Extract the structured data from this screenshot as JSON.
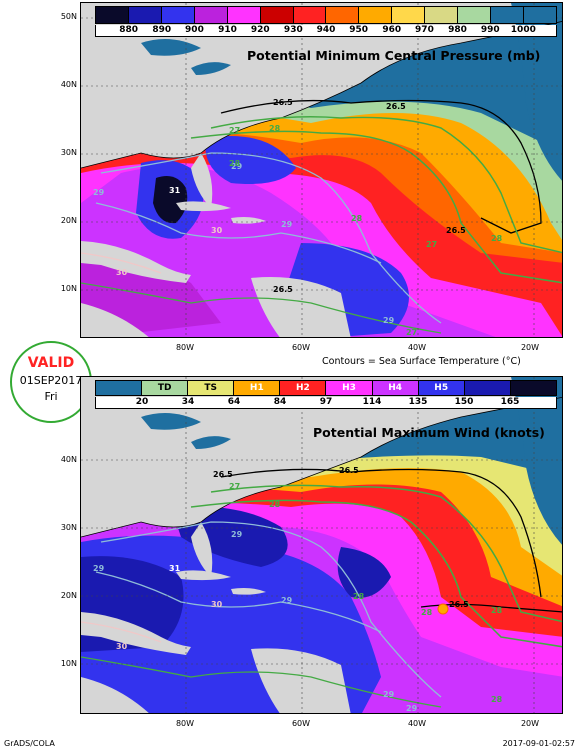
{
  "top_panel": {
    "title": "Potential Minimum Central Pressure (mb)",
    "legend_levels": [
      "880",
      "890",
      "900",
      "910",
      "920",
      "930",
      "940",
      "950",
      "960",
      "970",
      "980",
      "990",
      "1000"
    ],
    "legend_colors": [
      "#0a0a2a",
      "#1a1ab0",
      "#3333ee",
      "#bb22dd",
      "#ff33ff",
      "#cc0000",
      "#ff2222",
      "#ff6600",
      "#ffaa00",
      "#ffd84a",
      "#d9d985",
      "#a8d8a0",
      "#1f6fa0"
    ],
    "contour_note": "Contours = Sea Surface Temperature (°C)",
    "contour_labels": [
      "26.5",
      "26.5",
      "27",
      "28",
      "29",
      "31",
      "30",
      "28",
      "27",
      "26.5",
      "29",
      "30",
      "29",
      "26.5",
      "29",
      "28",
      "27",
      "28"
    ]
  },
  "bottom_panel": {
    "title": "Potential Maximum Wind (knots)",
    "legend_categories": [
      "TD",
      "TS",
      "H1",
      "H2",
      "H3",
      "H4",
      "H5"
    ],
    "legend_values": [
      "20",
      "34",
      "64",
      "84",
      "97",
      "114",
      "135",
      "150",
      "165"
    ],
    "legend_colors": [
      "#1f6fa0",
      "#a8d8a0",
      "#e6e673",
      "#ffaa00",
      "#ff2222",
      "#ff33ff",
      "#cc33ff",
      "#3333ee",
      "#1a1ab0",
      "#0a0a2a"
    ],
    "contour_labels": [
      "26.5",
      "26.5",
      "27",
      "28",
      "29",
      "31",
      "30",
      "29",
      "28",
      "26.5",
      "28",
      "29",
      "30",
      "29",
      "28",
      "29",
      "28"
    ]
  },
  "axes": {
    "lat_labels_top": [
      "50N",
      "40N",
      "30N",
      "20N",
      "10N"
    ],
    "lat_labels_bottom": [
      "40N",
      "30N",
      "20N",
      "10N"
    ],
    "lon_labels": [
      "80W",
      "60W",
      "40W",
      "20W"
    ]
  },
  "valid": {
    "label": "VALID",
    "date": "01SEP2017",
    "day": "Fri"
  },
  "footer": {
    "left": "GrADS/COLA",
    "right": "2017-09-01-02:57"
  }
}
